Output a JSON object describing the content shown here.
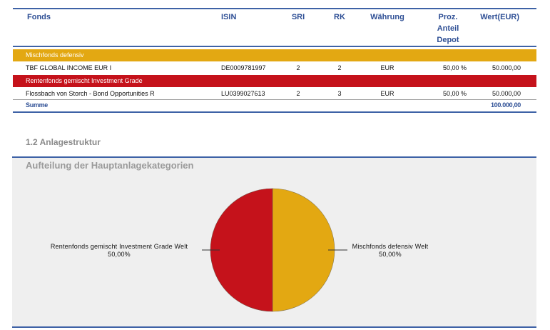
{
  "table": {
    "headers": {
      "fonds": "Fonds",
      "isin": "ISIN",
      "sri": "SRI",
      "rk": "RK",
      "waehrung": "Währung",
      "proz": [
        "Proz.",
        "Anteil",
        "Depot"
      ],
      "wert": "Wert(EUR)"
    },
    "groups": [
      {
        "label": "Mischfonds defensiv",
        "color": "#e3a812",
        "row": {
          "fonds": "TBF GLOBAL INCOME EUR I",
          "isin": "DE0009781997",
          "sri": "2",
          "rk": "2",
          "waehrung": "EUR",
          "proz": "50,00 %",
          "wert": "50.000,00"
        }
      },
      {
        "label": "Rentenfonds gemischt Investment Grade",
        "color": "#c5121b",
        "row": {
          "fonds": "Flossbach von Storch - Bond Opportunities R",
          "isin": "LU0399027613",
          "sri": "2",
          "rk": "3",
          "waehrung": "EUR",
          "proz": "50,00 %",
          "wert": "50.000,00"
        }
      }
    ],
    "summe": {
      "label": "Summe",
      "wert": "100.000,00"
    }
  },
  "section_title": "1.2 Anlagestruktur",
  "chart_data": {
    "type": "pie",
    "title": "Aufteilung der Hauptanlagekategorien",
    "slices": [
      {
        "label": "Mischfonds defensiv  Welt",
        "value": 50,
        "display": "50,00%",
        "color": "#e3a812"
      },
      {
        "label": "Rentenfonds gemischt Investment Grade Welt",
        "value": 50,
        "display": "50,00%",
        "color": "#c5121b"
      }
    ]
  }
}
